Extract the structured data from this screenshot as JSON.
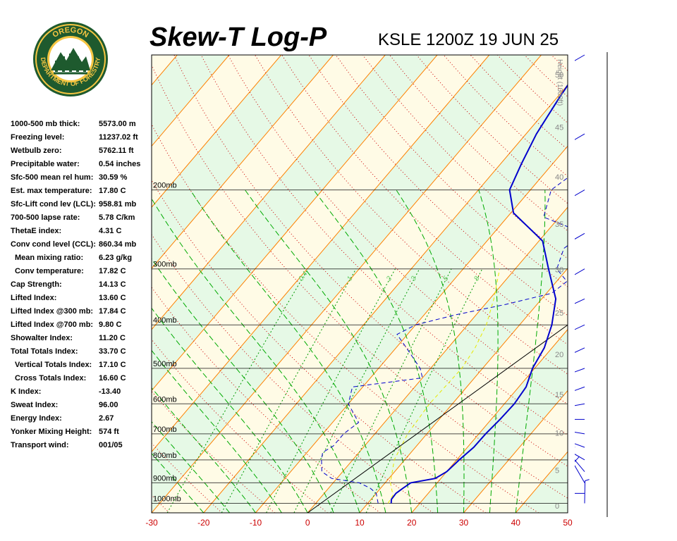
{
  "header": {
    "title": "Skew-T Log-P",
    "station_line": "KSLE 1200Z 19 JUN 25"
  },
  "logo": {
    "top_text": "OREGON",
    "ring_text": "DEPARTMENT OF FORESTRY"
  },
  "indices": [
    {
      "label": "1000-500 mb thick:",
      "value": "5573.00 m",
      "indent": false
    },
    {
      "label": "Freezing level:",
      "value": "11237.02 ft",
      "indent": false
    },
    {
      "label": "Wetbulb zero:",
      "value": "5762.11 ft",
      "indent": false
    },
    {
      "label": "Precipitable water:",
      "value": "0.54 inches",
      "indent": false
    },
    {
      "label": "Sfc-500 mean rel hum:",
      "value": "30.59 %",
      "indent": false
    },
    {
      "label": "Est. max temperature:",
      "value": "17.80 C",
      "indent": false
    },
    {
      "label": "Sfc-Lift cond lev (LCL):",
      "value": "958.81 mb",
      "indent": false
    },
    {
      "label": "700-500 lapse rate:",
      "value": "5.78 C/km",
      "indent": false
    },
    {
      "label": "ThetaE index:",
      "value": "4.31 C",
      "indent": false
    },
    {
      "label": "Conv cond level (CCL):",
      "value": "860.34 mb",
      "indent": false
    },
    {
      "label": "Mean mixing ratio:",
      "value": "6.23 g/kg",
      "indent": true
    },
    {
      "label": "Conv temperature:",
      "value": "17.82 C",
      "indent": true
    },
    {
      "label": "Cap Strength:",
      "value": "14.13 C",
      "indent": false
    },
    {
      "label": "Lifted Index:",
      "value": "13.60 C",
      "indent": false
    },
    {
      "label": "Lifted Index @300 mb:",
      "value": "17.84 C",
      "indent": false
    },
    {
      "label": "Lifted Index @700 mb:",
      "value": "9.80 C",
      "indent": false
    },
    {
      "label": "Showalter Index:",
      "value": "11.20 C",
      "indent": false
    },
    {
      "label": "Total Totals Index:",
      "value": "33.70 C",
      "indent": false
    },
    {
      "label": "Vertical Totals Index:",
      "value": "17.10 C",
      "indent": true
    },
    {
      "label": "Cross Totals Index:",
      "value": "16.60 C",
      "indent": true
    },
    {
      "label": "K Index:",
      "value": "-13.40",
      "indent": false
    },
    {
      "label": "Sweat Index:",
      "value": "96.00",
      "indent": false
    },
    {
      "label": "Energy Index:",
      "value": "2.67",
      "indent": false
    },
    {
      "label": "Yonker Mixing Height:",
      "value": "574 ft",
      "indent": false
    },
    {
      "label": "Transport wind:",
      "value": "001/05",
      "indent": false
    }
  ],
  "chart_data": {
    "type": "line",
    "x_axis": {
      "label": "",
      "range": [
        -30,
        50
      ],
      "ticks": [
        "-30",
        "-20",
        "-10",
        "0",
        "10",
        "20",
        "30",
        "40",
        "50"
      ]
    },
    "y_axis": {
      "scale": "log-pressure",
      "range_mb": [
        1050,
        100
      ],
      "ticks": [
        "200mb",
        "300mb",
        "400mb",
        "500mb",
        "600mb",
        "700mb",
        "800mb",
        "900mb",
        "1000mb"
      ]
    },
    "height_axis": {
      "label": "Height (1000ft)",
      "ticks": [
        "0",
        "5",
        "10",
        "15",
        "20",
        "25",
        "30",
        "35",
        "40",
        "45",
        "50"
      ]
    },
    "mixing_ratio_labels": [
      "0.4",
      "1",
      "2",
      "3",
      "5",
      "8"
    ],
    "colors": {
      "temperature": "#0000cc",
      "dewpoint": "#0000cc",
      "parcel": "#e8e800",
      "isotherm": "#ff8000",
      "dry_adiabat": "#cc0000",
      "moist_adiabat": "#00aa00",
      "mixing_ratio": "#009900",
      "pressure_line": "#000000",
      "band_light": "#fffbe6",
      "band_green": "#e6f9e6"
    },
    "series": [
      {
        "id": "temperature",
        "style": "solid",
        "points": [
          [
            1000,
            14.5
          ],
          [
            980,
            13.9
          ],
          [
            950,
            13.8
          ],
          [
            935,
            14.1
          ],
          [
            925,
            14.3
          ],
          [
            900,
            14.9
          ],
          [
            880,
            18.9
          ],
          [
            850,
            20.0
          ],
          [
            800,
            20.5
          ],
          [
            750,
            21.2
          ],
          [
            700,
            21.3
          ],
          [
            650,
            21.7
          ],
          [
            600,
            21.9
          ],
          [
            550,
            21.4
          ],
          [
            500,
            19.6
          ],
          [
            450,
            18.5
          ],
          [
            400,
            16.2
          ],
          [
            350,
            12.7
          ],
          [
            300,
            6.4
          ],
          [
            260,
            0.7
          ],
          [
            225,
            -9.5
          ],
          [
            200,
            -14.0
          ],
          [
            175,
            -16.0
          ],
          [
            150,
            -18.0
          ],
          [
            125,
            -19.5
          ],
          [
            100,
            -21.0
          ]
        ]
      },
      {
        "id": "dewpoint",
        "style": "dashed",
        "points": [
          [
            1000,
            12.0
          ],
          [
            950,
            10.0
          ],
          [
            925,
            8.0
          ],
          [
            900,
            5.0
          ],
          [
            880,
            -1.0
          ],
          [
            850,
            -4.0
          ],
          [
            800,
            -6.0
          ],
          [
            770,
            -7.0
          ],
          [
            745,
            -6.0
          ],
          [
            700,
            -6.0
          ],
          [
            660,
            -5.0
          ],
          [
            600,
            -10.0
          ],
          [
            550,
            -12.0
          ],
          [
            525,
            0.0
          ],
          [
            500,
            -2.0
          ],
          [
            450,
            -8.0
          ],
          [
            420,
            -12.0
          ],
          [
            400,
            -10.0
          ],
          [
            380,
            -4.0
          ],
          [
            360,
            4.0
          ],
          [
            340,
            11.0
          ],
          [
            320,
            12.0
          ],
          [
            300,
            8.0
          ],
          [
            270,
            6.0
          ],
          [
            250,
            7.5
          ],
          [
            230,
            -3.0
          ],
          [
            200,
            -6.0
          ],
          [
            180,
            -4.0
          ],
          [
            160,
            -8.0
          ],
          [
            140,
            -12.0
          ],
          [
            120,
            -15.0
          ],
          [
            100,
            -18.0
          ]
        ]
      },
      {
        "id": "parcel",
        "style": "dashed",
        "points": [
          [
            1000,
            13.9
          ],
          [
            958.81,
            13.5
          ],
          [
            900,
            11.0
          ],
          [
            800,
            8.0
          ],
          [
            700,
            6.3
          ],
          [
            600,
            5.6
          ],
          [
            500,
            6.0
          ],
          [
            450,
            5.2
          ],
          [
            400,
            3.6
          ],
          [
            350,
            0.8
          ],
          [
            300,
            -3.0
          ]
        ]
      }
    ],
    "wind_barbs": [
      {
        "p": 1000,
        "dir": 1,
        "spd": 5
      },
      {
        "p": 950,
        "dir": 270,
        "spd": 10
      },
      {
        "p": 900,
        "dir": 330,
        "spd": 10
      },
      {
        "p": 850,
        "dir": 320,
        "spd": 10
      },
      {
        "p": 800,
        "dir": 300,
        "spd": 10
      },
      {
        "p": 750,
        "dir": 290,
        "spd": 10
      },
      {
        "p": 700,
        "dir": 280,
        "spd": 15
      },
      {
        "p": 650,
        "dir": 270,
        "spd": 15
      },
      {
        "p": 600,
        "dir": 260,
        "spd": 20
      },
      {
        "p": 550,
        "dir": 250,
        "spd": 20
      },
      {
        "p": 500,
        "dir": 250,
        "spd": 25
      },
      {
        "p": 450,
        "dir": 245,
        "spd": 25
      },
      {
        "p": 400,
        "dir": 245,
        "spd": 50
      },
      {
        "p": 350,
        "dir": 245,
        "spd": 50
      },
      {
        "p": 300,
        "dir": 240,
        "spd": 50
      },
      {
        "p": 250,
        "dir": 240,
        "spd": 55
      },
      {
        "p": 200,
        "dir": 240,
        "spd": 60
      },
      {
        "p": 150,
        "dir": 240,
        "spd": 50
      },
      {
        "p": 100,
        "dir": 240,
        "spd": 50
      }
    ]
  }
}
